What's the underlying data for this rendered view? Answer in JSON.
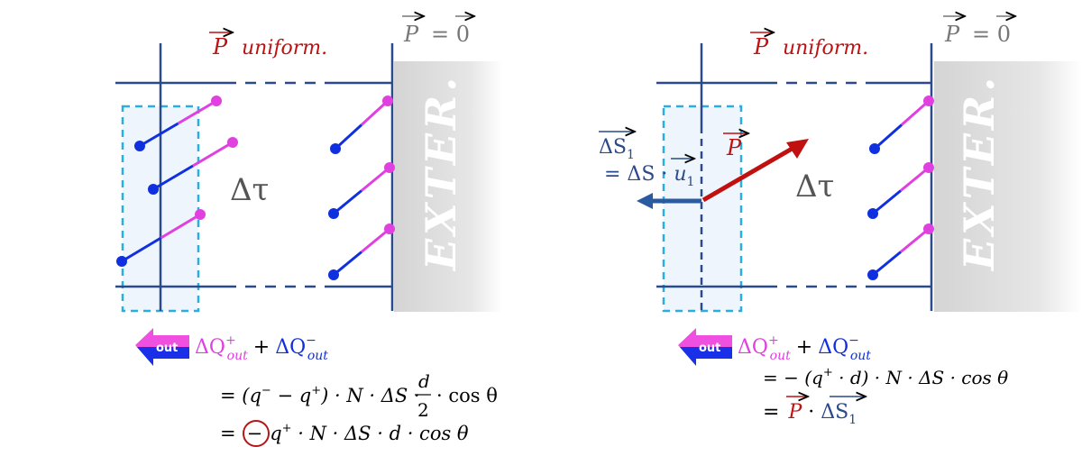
{
  "colors": {
    "positive": "#e040e0",
    "negative": "#1030e0",
    "wall": "#2a4a8a",
    "box": "#2aaee0",
    "polarization": "#c01010",
    "exterior": "#d9d9d9",
    "text": "#111111",
    "grey_text": "#555555"
  },
  "left": {
    "p_uniform": "P",
    "uniform_label": "uniform.",
    "p_zero_lhs": "P",
    "p_zero_rhs": "= 0",
    "volume_label": "Δτ",
    "exterior_label": "EXTER.",
    "out_badge": "out",
    "sum_pos": "ΔQ",
    "sum_pos_sup": "+",
    "sum_pos_sub": "out",
    "plus": "+",
    "sum_neg": "ΔQ",
    "sum_neg_sup": "−",
    "sum_neg_sub": "out",
    "line1_a": "= (q",
    "line1_sup1": "−",
    "line1_b": " − q",
    "line1_sup2": "+",
    "line1_c": ") · N · ΔS ·",
    "line1_frac_num": "d",
    "line1_frac_den": "2",
    "line1_d": "· cos θ",
    "line2_a": "=",
    "line2_circled": "−",
    "line2_b": "q",
    "line2_sup": "+",
    "line2_c": " · N · ΔS · d · cos θ"
  },
  "right": {
    "p_uniform": "P",
    "uniform_label": "uniform.",
    "p_zero_lhs": "P",
    "p_zero_rhs": "= 0",
    "volume_label": "Δτ",
    "exterior_label": "EXTER.",
    "ds1_label": "ΔS",
    "ds1_sub": "1",
    "ds1_eq": "= ΔS · ",
    "u1_label": "u",
    "u1_sub": "1",
    "p_arrow_label": "P",
    "out_badge": "out",
    "sum_pos": "ΔQ",
    "sum_pos_sup": "+",
    "sum_pos_sub": "out",
    "plus": "+",
    "sum_neg": "ΔQ",
    "sum_neg_sup": "−",
    "sum_neg_sub": "out",
    "line1_a": "= − (q",
    "line1_sup": "+",
    "line1_b": " · d) · N · ΔS · cos θ",
    "line2_a": "=",
    "line2_p": "P",
    "line2_dot": " · ",
    "line2_ds": "ΔS",
    "line2_ds_sub": "1"
  }
}
